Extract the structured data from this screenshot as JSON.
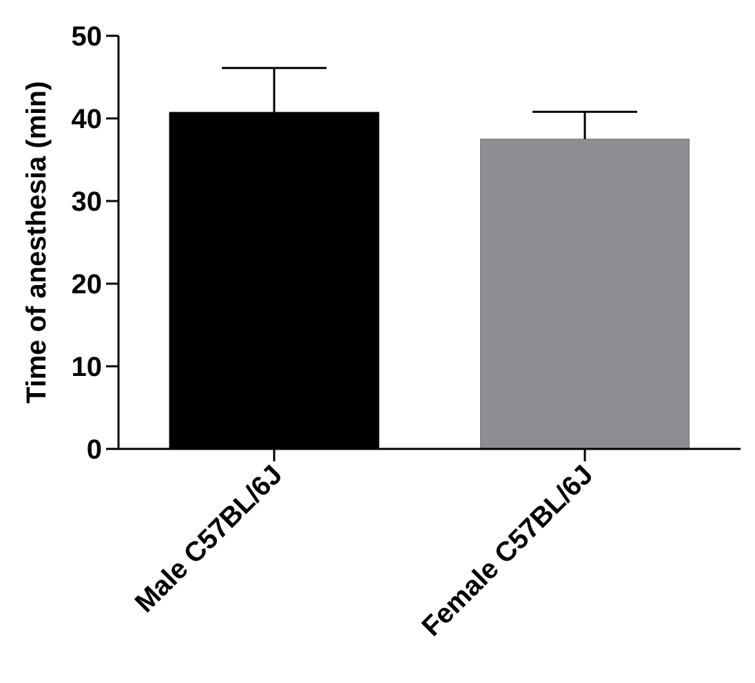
{
  "chart_data": {
    "type": "bar",
    "title": "",
    "xlabel": "",
    "ylabel": "Time of anesthesia (min)",
    "ylim": [
      0,
      50
    ],
    "yticks": [
      0,
      10,
      20,
      30,
      40,
      50
    ],
    "grid": false,
    "categories": [
      "Male C57BL/6J",
      "Female C57BL/6J"
    ],
    "values": [
      40.7,
      37.5
    ],
    "error_upper": [
      5.4,
      3.3
    ],
    "colors": [
      "#000000",
      "#8e8d92"
    ]
  }
}
